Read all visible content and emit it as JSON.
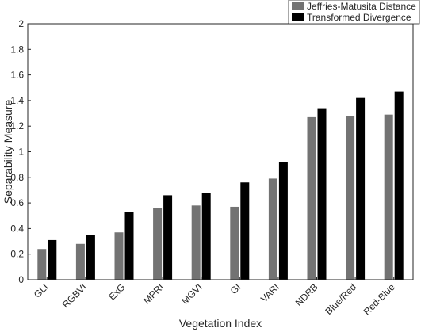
{
  "chart_data": {
    "type": "bar",
    "xlabel": "Vegetation Index",
    "ylabel": "Separability Measure",
    "ylim": [
      0,
      2
    ],
    "yticks": [
      "0",
      "0.2",
      "0.4",
      "0.6",
      "0.8",
      "1",
      "1.2",
      "1.4",
      "1.6",
      "1.8",
      "2"
    ],
    "grid": false,
    "legend_position": "top-right",
    "categories": [
      "GLI",
      "RGBVI",
      "ExG",
      "MPRI",
      "MGVI",
      "GI",
      "VARI",
      "NDRB",
      "Blue/Red",
      "Red-Blue"
    ],
    "series": [
      {
        "name": "Jeffries-Matusita Distance",
        "color": "#737373",
        "values": [
          0.24,
          0.28,
          0.37,
          0.56,
          0.58,
          0.57,
          0.79,
          1.27,
          1.28,
          1.29
        ]
      },
      {
        "name": "Transformed Divergence",
        "color": "#000000",
        "values": [
          0.31,
          0.35,
          0.53,
          0.66,
          0.68,
          0.76,
          0.92,
          1.34,
          1.42,
          1.47
        ]
      }
    ]
  }
}
